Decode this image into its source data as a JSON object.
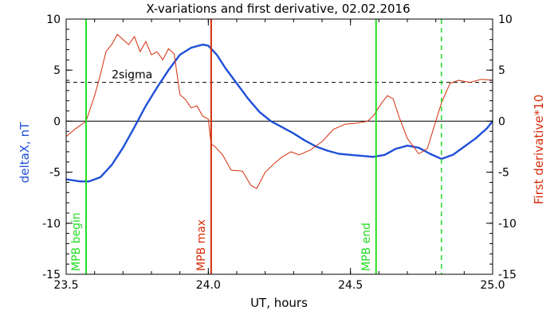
{
  "chart_data": {
    "type": "line",
    "title": "X-variations and first derivative, 02.02.2016",
    "xlabel": "UT, hours",
    "ylabel_left": "deltaX, nT",
    "ylabel_right": "First derivative*10",
    "xlim": [
      23.5,
      25.0
    ],
    "ylim": [
      -15,
      10
    ],
    "ylim_right": [
      -15,
      10
    ],
    "x_ticks": [
      "23.5",
      "24.0",
      "24.5",
      "25.0"
    ],
    "y_ticks_left": [
      "10",
      "5",
      "0",
      "-5",
      "-10",
      "-15"
    ],
    "y_ticks_right": [
      "10",
      "5",
      "0",
      "-5",
      "-10",
      "-15"
    ],
    "grid": false,
    "zero_line": 0,
    "threshold": {
      "label": "2sigma",
      "value": 3.8,
      "style": "dashed",
      "color": "#000000"
    },
    "series": [
      {
        "name": "deltaX, nT",
        "color": "#1f4fd8",
        "axis": "left",
        "x": [
          23.5,
          23.55,
          23.58,
          23.62,
          23.66,
          23.7,
          23.74,
          23.78,
          23.82,
          23.86,
          23.9,
          23.94,
          23.98,
          24.0,
          24.03,
          24.06,
          24.1,
          24.14,
          24.18,
          24.22,
          24.26,
          24.3,
          24.34,
          24.38,
          24.42,
          24.46,
          24.5,
          24.54,
          24.58,
          24.62,
          24.66,
          24.7,
          24.74,
          24.78,
          24.82,
          24.86,
          24.9,
          24.94,
          24.98,
          25.0
        ],
        "values": [
          -5.7,
          -5.9,
          -5.9,
          -5.5,
          -4.3,
          -2.6,
          -0.6,
          1.5,
          3.3,
          5.0,
          6.5,
          7.2,
          7.5,
          7.4,
          6.5,
          5.2,
          3.7,
          2.2,
          0.9,
          0.0,
          -0.6,
          -1.2,
          -1.9,
          -2.5,
          -2.9,
          -3.2,
          -3.3,
          -3.4,
          -3.5,
          -3.3,
          -2.7,
          -2.4,
          -2.6,
          -3.2,
          -3.7,
          -3.3,
          -2.5,
          -1.7,
          -0.7,
          0.0
        ]
      },
      {
        "name": "First derivative*10",
        "color": "#d62c0a",
        "axis": "right",
        "x": [
          23.5,
          23.53,
          23.57,
          23.6,
          23.62,
          23.64,
          23.66,
          23.68,
          23.7,
          23.72,
          23.74,
          23.76,
          23.78,
          23.8,
          23.82,
          23.84,
          23.86,
          23.88,
          23.9,
          23.92,
          23.94,
          23.96,
          23.98,
          24.0,
          24.01,
          24.02,
          24.05,
          24.08,
          24.12,
          24.15,
          24.17,
          24.2,
          24.23,
          24.26,
          24.29,
          24.32,
          24.36,
          24.4,
          24.44,
          24.48,
          24.52,
          24.56,
          24.58,
          24.61,
          24.63,
          24.65,
          24.67,
          24.7,
          24.74,
          24.77,
          24.8,
          24.82,
          24.85,
          24.88,
          24.92,
          24.96,
          25.0
        ],
        "values": [
          -1.5,
          -0.8,
          0.0,
          2.5,
          4.5,
          6.8,
          7.5,
          8.5,
          8.0,
          7.5,
          8.3,
          6.8,
          7.8,
          6.5,
          6.8,
          6.0,
          7.1,
          6.6,
          2.6,
          2.1,
          1.3,
          1.5,
          0.5,
          0.2,
          -2.3,
          -2.4,
          -3.3,
          -4.8,
          -4.9,
          -6.3,
          -6.6,
          -5.0,
          -4.2,
          -3.5,
          -3.0,
          -3.3,
          -2.8,
          -2.0,
          -0.8,
          -0.3,
          -0.2,
          0.0,
          0.5,
          1.8,
          2.5,
          2.2,
          0.5,
          -1.7,
          -3.2,
          -2.7,
          0.0,
          1.8,
          3.7,
          4.0,
          3.8,
          4.1,
          4.0
        ]
      }
    ],
    "markers": [
      {
        "label": "MPB begin",
        "x": 23.57,
        "color": "#22dd22",
        "style": "solid"
      },
      {
        "label": "MPB max",
        "x": 24.01,
        "color": "#d62c0a",
        "style": "solid"
      },
      {
        "label": "MPB end",
        "x": 24.59,
        "color": "#22dd22",
        "style": "solid"
      },
      {
        "label": "",
        "x": 24.82,
        "color": "#22dd22",
        "style": "dashed"
      }
    ]
  }
}
